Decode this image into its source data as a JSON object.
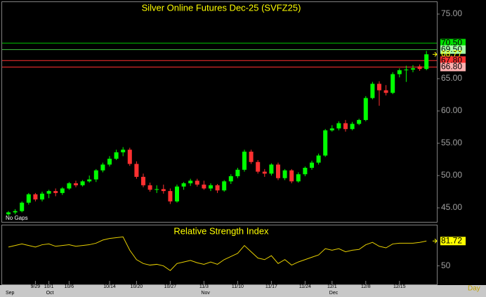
{
  "chart_data": {
    "type": "candlestick",
    "title": "Silver Online Futures Dec-25 (SVFZ25)",
    "categories": [
      null,
      null,
      null,
      null,
      "9/29",
      null,
      "10/1",
      null,
      null,
      "10/6",
      null,
      null,
      null,
      null,
      null,
      "10/14",
      null,
      null,
      null,
      "10/20",
      null,
      null,
      null,
      null,
      "10/27",
      null,
      null,
      null,
      null,
      "11/3",
      null,
      null,
      null,
      null,
      "11/10",
      null,
      null,
      null,
      null,
      "11/17",
      null,
      null,
      null,
      null,
      "11/24",
      null,
      null,
      null,
      "12/1",
      null,
      null,
      null,
      null,
      "12/8",
      null,
      null,
      null,
      null,
      "12/15",
      null,
      null,
      null,
      null
    ],
    "months": [
      "Sep",
      null,
      null,
      null,
      null,
      null,
      "Oct",
      null,
      null,
      null,
      null,
      null,
      null,
      null,
      null,
      null,
      null,
      null,
      null,
      null,
      null,
      null,
      null,
      null,
      null,
      null,
      null,
      null,
      null,
      "Nov",
      null,
      null,
      null,
      null,
      null,
      null,
      null,
      null,
      null,
      null,
      null,
      null,
      null,
      null,
      null,
      null,
      null,
      null,
      "Dec",
      null,
      null,
      null,
      null,
      null,
      null,
      null,
      null,
      null,
      null,
      null,
      null,
      null,
      null
    ],
    "open": [
      44.0,
      44.3,
      44.5,
      45.8,
      47.1,
      46.3,
      47.2,
      47.6,
      47.3,
      48.0,
      48.8,
      48.5,
      49.1,
      49.4,
      50.8,
      51.7,
      52.6,
      53.6,
      54.0,
      51.8,
      49.8,
      48.5,
      47.8,
      47.9,
      47.6,
      46.0,
      48.3,
      48.8,
      49.2,
      48.6,
      48.0,
      48.5,
      47.7,
      49.1,
      49.9,
      50.9,
      53.7,
      52.1,
      50.6,
      50.3,
      51.7,
      49.6,
      50.8,
      49.1,
      50.2,
      51.2,
      52.0,
      53.1,
      57.0,
      57.3,
      58.1,
      57.2,
      58.0,
      58.6,
      62.0,
      64.2,
      63.2,
      62.8,
      65.7,
      66.3,
      66.4,
      66.9,
      66.5
    ],
    "high": [
      44.5,
      44.8,
      46.0,
      47.3,
      47.3,
      47.5,
      47.8,
      48.0,
      48.2,
      49.0,
      49.2,
      49.3,
      50.0,
      51.0,
      52.0,
      53.0,
      54.0,
      54.4,
      54.3,
      52.2,
      50.3,
      48.9,
      48.5,
      48.6,
      48.0,
      48.6,
      49.0,
      49.5,
      49.5,
      49.2,
      48.8,
      48.7,
      49.3,
      50.2,
      51.2,
      54.0,
      54.0,
      52.4,
      51.0,
      51.9,
      52.0,
      51.0,
      51.0,
      50.5,
      51.4,
      52.3,
      53.4,
      57.2,
      57.8,
      58.4,
      58.6,
      58.3,
      58.8,
      62.3,
      64.5,
      64.6,
      64.0,
      66.0,
      66.6,
      67.0,
      67.1,
      67.2,
      69.3
    ],
    "low": [
      43.8,
      44.0,
      44.3,
      45.5,
      46.0,
      46.0,
      46.5,
      46.8,
      47.0,
      47.8,
      48.2,
      48.3,
      48.9,
      49.0,
      50.5,
      51.4,
      52.4,
      53.0,
      51.5,
      49.5,
      48.2,
      47.5,
      47.3,
      47.2,
      45.6,
      45.8,
      47.8,
      48.4,
      48.3,
      47.8,
      47.6,
      47.3,
      47.5,
      48.7,
      49.6,
      50.6,
      51.8,
      50.3,
      49.8,
      50.0,
      49.3,
      49.3,
      48.8,
      48.9,
      49.9,
      50.9,
      51.7,
      52.9,
      56.8,
      57.0,
      56.8,
      57.0,
      57.8,
      58.4,
      61.8,
      60.8,
      62.4,
      62.6,
      65.2,
      64.5,
      66.0,
      66.2,
      66.3
    ],
    "close": [
      44.3,
      44.5,
      45.8,
      47.1,
      46.3,
      47.2,
      47.6,
      47.3,
      48.0,
      48.8,
      48.5,
      49.1,
      49.4,
      50.8,
      51.7,
      52.6,
      53.6,
      54.0,
      51.8,
      49.8,
      48.5,
      47.8,
      47.9,
      47.6,
      46.0,
      48.3,
      48.8,
      49.2,
      48.6,
      48.0,
      48.5,
      47.7,
      49.1,
      49.9,
      50.9,
      53.7,
      52.1,
      50.6,
      50.3,
      51.7,
      49.6,
      50.8,
      49.1,
      50.2,
      51.2,
      52.0,
      53.1,
      57.0,
      57.3,
      58.1,
      57.2,
      58.0,
      58.6,
      62.0,
      64.2,
      63.2,
      62.8,
      65.7,
      66.3,
      66.4,
      66.6,
      66.5,
      68.77
    ],
    "color_up": "#00ff00",
    "color_down": "#ff3030",
    "ylim": [
      42.83,
      76.85
    ],
    "yticks": [
      {
        "value": 45,
        "label": "45.00"
      },
      {
        "value": 50,
        "label": "50.00"
      },
      {
        "value": 55,
        "label": "55.00"
      },
      {
        "value": 60,
        "label": "60.00"
      },
      {
        "value": 65,
        "label": "65.00"
      },
      {
        "value": 75,
        "label": "75.00"
      }
    ],
    "levels": [
      {
        "value": 70.5,
        "label": "70.50",
        "color": "#00c000",
        "box": "#00e000"
      },
      {
        "value": 69.5,
        "label": "69.50",
        "color": "#40c040",
        "box": "#a8ffa8"
      },
      {
        "value": 68.77,
        "label": "68.77",
        "color": null,
        "box": null
      },
      {
        "value": 67.8,
        "label": "67.80",
        "color": "#ff3030",
        "box": "#ff3030"
      },
      {
        "value": 66.8,
        "label": "66.80",
        "color": "#ff3030",
        "box": "#ffb0b0"
      }
    ],
    "note": "No Gaps",
    "period": "Day",
    "rsi": {
      "title": "Relative Strength Index",
      "color": "#e8d000",
      "ylim": [
        26.4,
        101.7
      ],
      "yticks": [
        50
      ],
      "values": [
        74,
        76,
        78,
        76,
        74,
        77,
        78,
        75,
        76,
        77,
        75,
        76,
        77,
        79,
        83,
        85,
        86,
        87,
        70,
        58,
        53,
        51,
        52,
        50,
        44,
        53,
        55,
        57,
        54,
        52,
        55,
        52,
        58,
        62,
        66,
        76,
        68,
        60,
        58,
        63,
        53,
        58,
        51,
        55,
        58,
        61,
        64,
        72,
        70,
        72,
        68,
        70,
        71,
        77,
        80,
        75,
        73,
        78,
        79,
        79,
        79,
        80,
        81.72
      ]
    }
  }
}
